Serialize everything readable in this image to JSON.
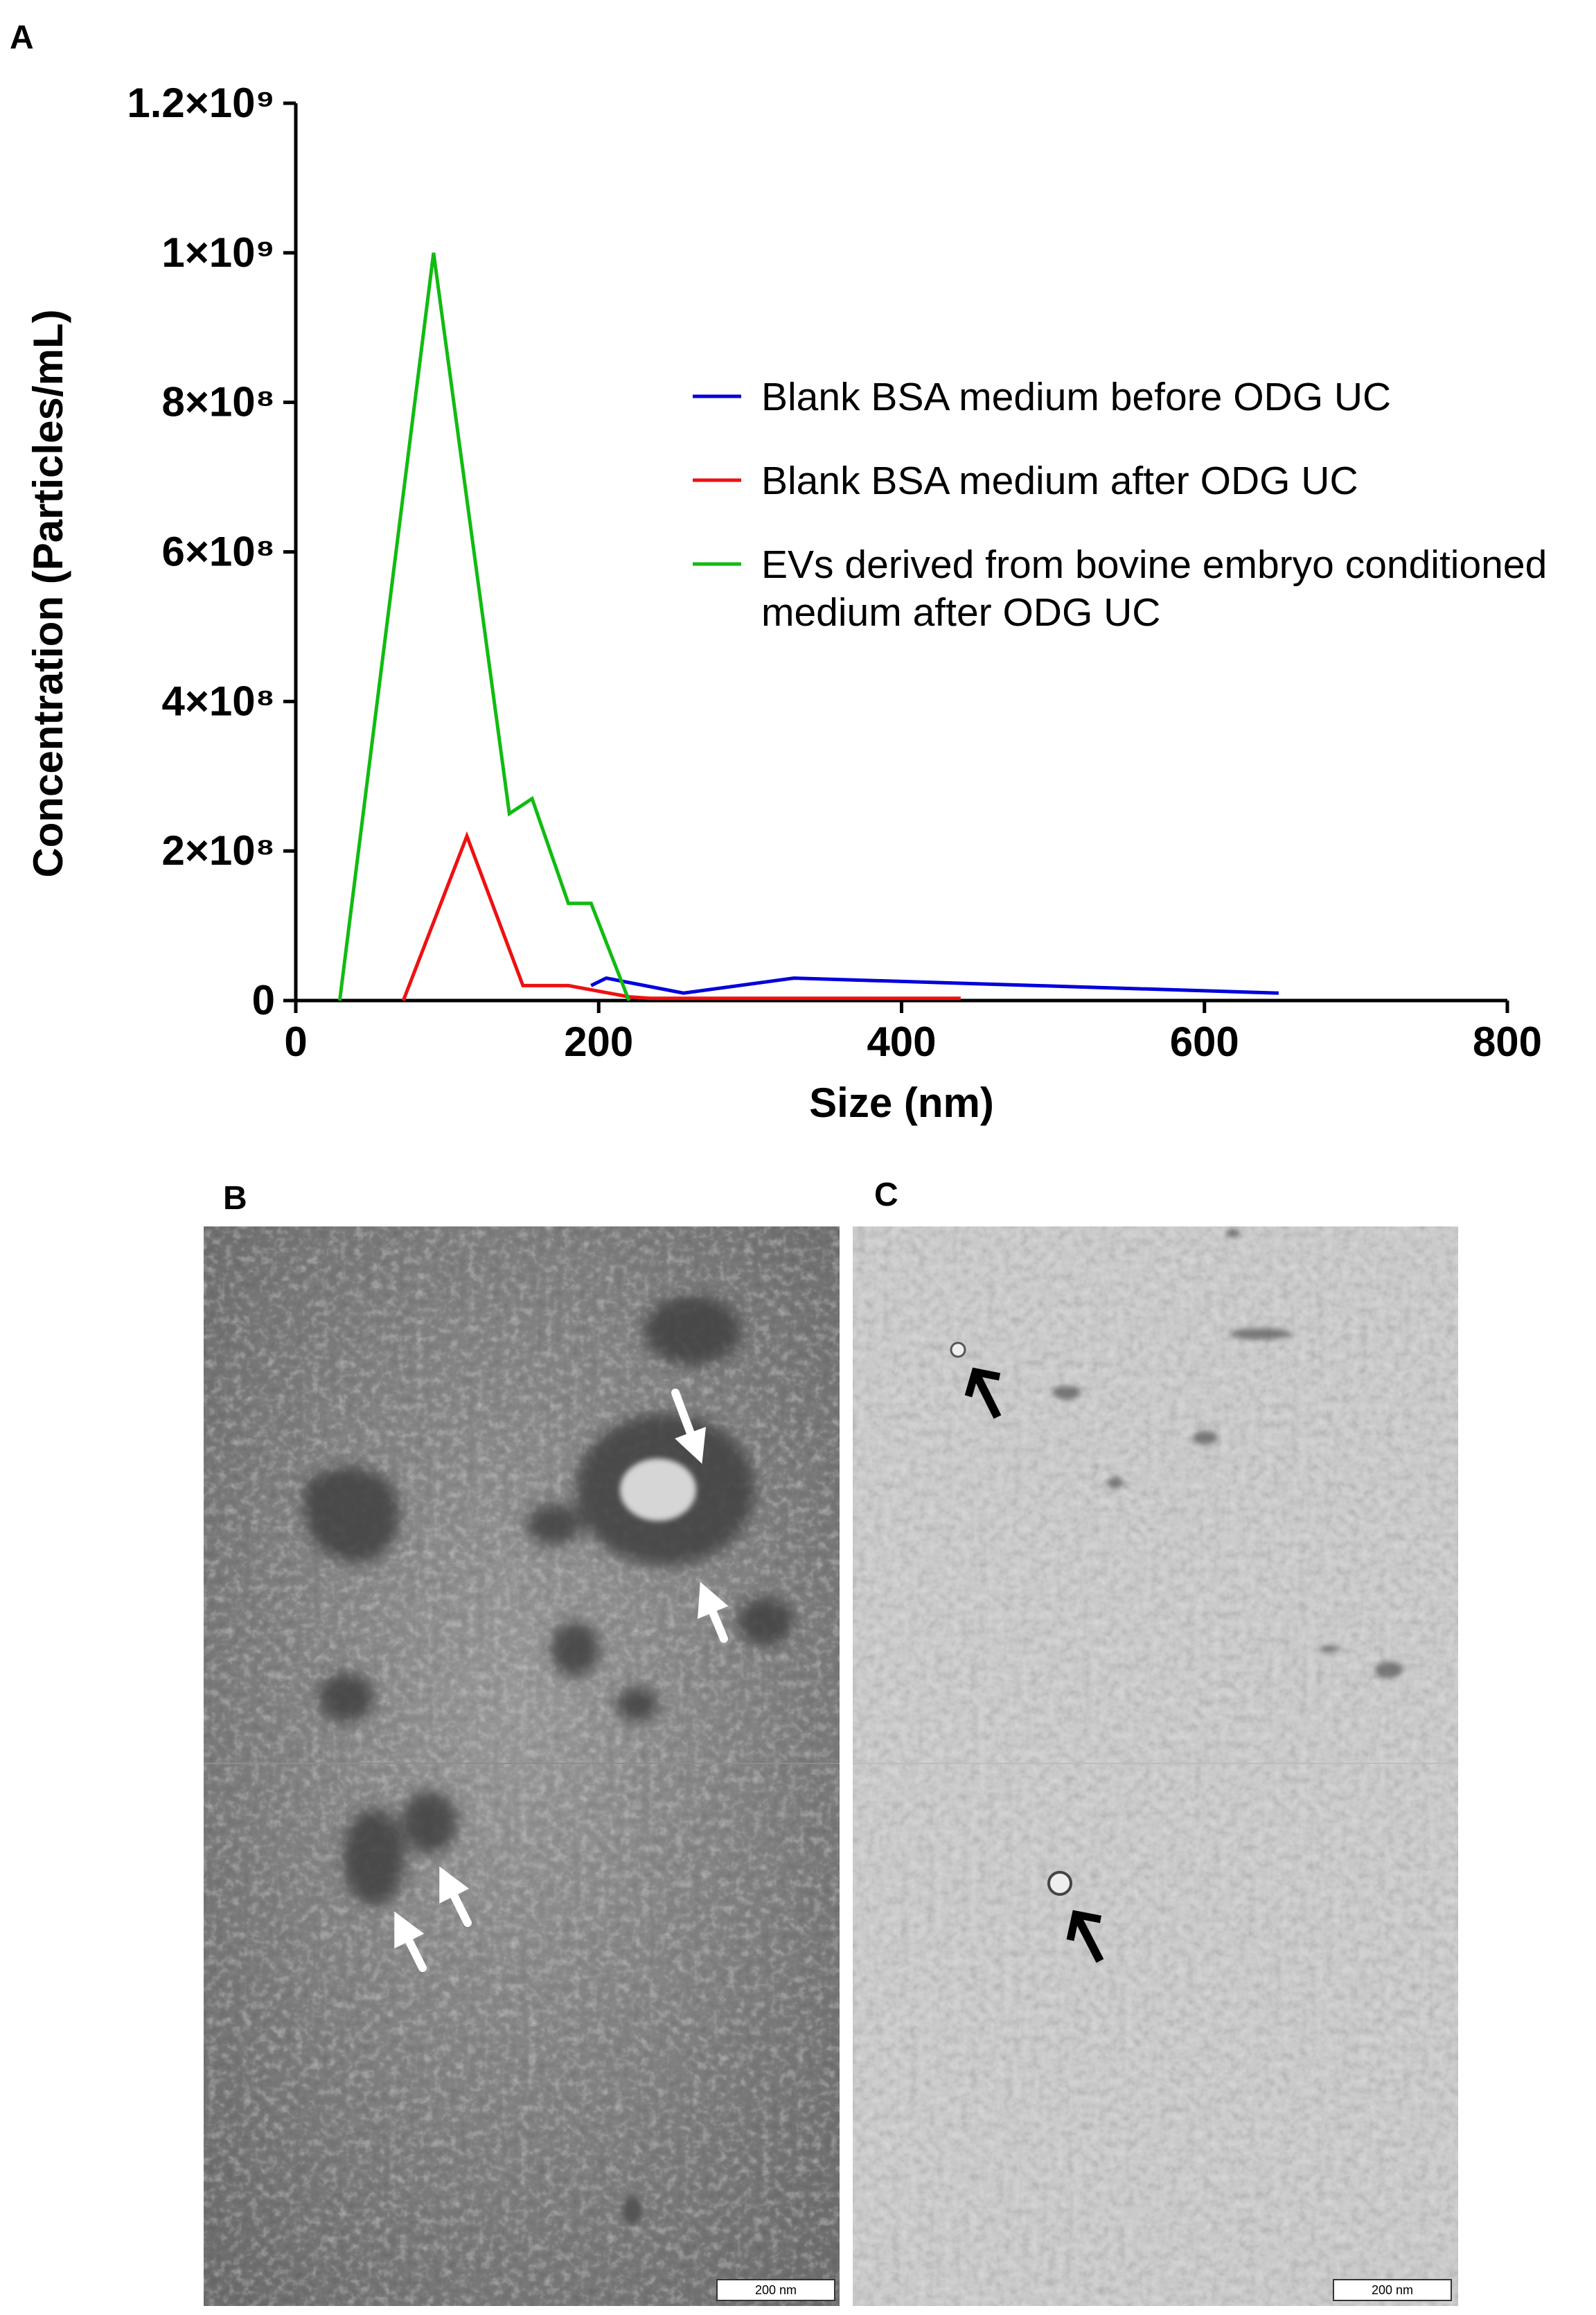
{
  "panel_labels": [
    "A",
    "B",
    "C"
  ],
  "chart_data": {
    "type": "line",
    "xlabel": "Size (nm)",
    "ylabel": "Concentration (Particles/mL)",
    "xlim": [
      0,
      800
    ],
    "xticks": [
      0,
      200,
      400,
      600,
      800
    ],
    "ylim": [
      0,
      1200000000
    ],
    "yticks": [
      0,
      {
        "value": 200000000,
        "label": "2×10⁸"
      },
      {
        "value": 400000000,
        "label": "4×10⁸"
      },
      {
        "value": 600000000,
        "label": "6×10⁸"
      },
      {
        "value": 800000000,
        "label": "8×10⁸"
      },
      {
        "value": 1000000000,
        "label": "1×10⁹"
      },
      {
        "value": 1200000000,
        "label": "1.2×10⁹"
      }
    ],
    "series": [
      {
        "name": "Blank BSA medium before ODG UC",
        "color": "#0000dd",
        "x": [
          195,
          205,
          256,
          329,
          649
        ],
        "values": [
          20000000,
          30000000,
          10000000,
          30000000,
          10000000
        ]
      },
      {
        "name": "Blank BSA medium after ODG UC",
        "color": "#ee1111",
        "x": [
          71,
          113,
          150,
          180,
          220,
          234,
          439
        ],
        "values": [
          0,
          220000000,
          20000000,
          20000000,
          5000000,
          3000000,
          3000000
        ]
      },
      {
        "name": "EVs derived from bovine embryo conditioned medium after ODG UC",
        "color": "#11bb11",
        "x": [
          29,
          91,
          141,
          156,
          180,
          195,
          220
        ],
        "values": [
          0,
          1000000000,
          250000000,
          270000000,
          130000000,
          130000000,
          0
        ]
      }
    ]
  },
  "images": {
    "scale_bars": [
      "200 nm",
      "200 nm"
    ]
  }
}
